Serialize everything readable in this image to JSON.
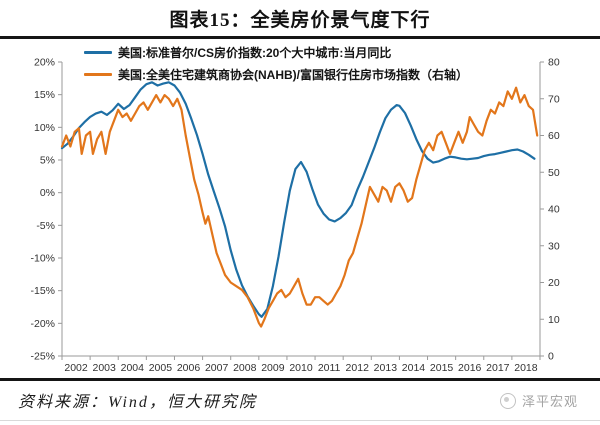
{
  "header": {
    "title": "图表15：全美房价景气度下行"
  },
  "footer": {
    "source": "资料来源：Wind，恒大研究院",
    "watermark": "泽平宏观"
  },
  "chart_data": {
    "type": "line",
    "title": "图表15：全美房价景气度下行",
    "grid": false,
    "legend_position": "top-left",
    "x_axis": {
      "range": [
        2002,
        2019
      ],
      "tick_labels": [
        "2002",
        "2003",
        "2004",
        "2005",
        "2006",
        "2007",
        "2008",
        "2009",
        "2010",
        "2011",
        "2012",
        "2013",
        "2014",
        "2015",
        "2016",
        "2017",
        "2018"
      ]
    },
    "left_axis": {
      "range": [
        -25,
        20
      ],
      "tick_values": [
        20,
        15,
        10,
        5,
        0,
        -5,
        -10,
        -15,
        -20,
        -25
      ],
      "tick_labels": [
        "20%",
        "15%",
        "10%",
        "5%",
        "0%",
        "-5%",
        "-10%",
        "-15%",
        "-20%",
        "-25%"
      ]
    },
    "right_axis": {
      "range": [
        0,
        80
      ],
      "tick_values": [
        80,
        70,
        60,
        50,
        40,
        30,
        20,
        10,
        0
      ],
      "tick_labels": [
        "80",
        "70",
        "60",
        "50",
        "40",
        "30",
        "20",
        "10",
        "0"
      ]
    },
    "series": [
      {
        "name": "美国:标准普尔/CS房价指数:20个大中城市:当月同比",
        "axis": "left",
        "color": "#1E6FA5",
        "points": [
          [
            2002.0,
            6.8
          ],
          [
            2002.2,
            7.5
          ],
          [
            2002.4,
            8.6
          ],
          [
            2002.6,
            9.9
          ],
          [
            2002.8,
            10.8
          ],
          [
            2003.0,
            11.6
          ],
          [
            2003.2,
            12.1
          ],
          [
            2003.4,
            12.4
          ],
          [
            2003.6,
            11.9
          ],
          [
            2003.8,
            12.6
          ],
          [
            2004.0,
            13.6
          ],
          [
            2004.2,
            12.8
          ],
          [
            2004.4,
            13.4
          ],
          [
            2004.6,
            14.6
          ],
          [
            2004.8,
            15.8
          ],
          [
            2005.0,
            16.6
          ],
          [
            2005.2,
            16.9
          ],
          [
            2005.4,
            16.4
          ],
          [
            2005.6,
            16.7
          ],
          [
            2005.8,
            16.9
          ],
          [
            2006.0,
            16.4
          ],
          [
            2006.2,
            15.3
          ],
          [
            2006.4,
            13.6
          ],
          [
            2006.6,
            11.3
          ],
          [
            2006.8,
            8.8
          ],
          [
            2007.0,
            5.9
          ],
          [
            2007.2,
            2.8
          ],
          [
            2007.4,
            0.2
          ],
          [
            2007.6,
            -2.4
          ],
          [
            2007.8,
            -5.2
          ],
          [
            2008.0,
            -8.8
          ],
          [
            2008.2,
            -11.8
          ],
          [
            2008.4,
            -14.2
          ],
          [
            2008.6,
            -15.9
          ],
          [
            2008.8,
            -17.3
          ],
          [
            2009.0,
            -18.6
          ],
          [
            2009.1,
            -19.0
          ],
          [
            2009.3,
            -17.8
          ],
          [
            2009.5,
            -14.3
          ],
          [
            2009.7,
            -9.8
          ],
          [
            2009.9,
            -4.6
          ],
          [
            2010.1,
            0.3
          ],
          [
            2010.3,
            3.6
          ],
          [
            2010.5,
            4.7
          ],
          [
            2010.7,
            3.2
          ],
          [
            2010.9,
            0.6
          ],
          [
            2011.1,
            -1.8
          ],
          [
            2011.3,
            -3.2
          ],
          [
            2011.5,
            -4.1
          ],
          [
            2011.7,
            -4.4
          ],
          [
            2011.9,
            -3.9
          ],
          [
            2012.1,
            -3.1
          ],
          [
            2012.3,
            -1.9
          ],
          [
            2012.5,
            0.4
          ],
          [
            2012.7,
            2.4
          ],
          [
            2012.9,
            4.6
          ],
          [
            2013.1,
            6.8
          ],
          [
            2013.3,
            9.2
          ],
          [
            2013.5,
            11.4
          ],
          [
            2013.7,
            12.7
          ],
          [
            2013.9,
            13.4
          ],
          [
            2014.0,
            13.3
          ],
          [
            2014.2,
            12.2
          ],
          [
            2014.4,
            10.3
          ],
          [
            2014.6,
            8.2
          ],
          [
            2014.8,
            6.4
          ],
          [
            2015.0,
            5.2
          ],
          [
            2015.2,
            4.6
          ],
          [
            2015.4,
            4.8
          ],
          [
            2015.6,
            5.2
          ],
          [
            2015.8,
            5.5
          ],
          [
            2016.0,
            5.4
          ],
          [
            2016.2,
            5.2
          ],
          [
            2016.4,
            5.1
          ],
          [
            2016.6,
            5.2
          ],
          [
            2016.8,
            5.3
          ],
          [
            2017.0,
            5.6
          ],
          [
            2017.2,
            5.8
          ],
          [
            2017.4,
            5.9
          ],
          [
            2017.6,
            6.1
          ],
          [
            2017.8,
            6.3
          ],
          [
            2018.0,
            6.5
          ],
          [
            2018.2,
            6.6
          ],
          [
            2018.4,
            6.3
          ],
          [
            2018.6,
            5.8
          ],
          [
            2018.8,
            5.2
          ]
        ]
      },
      {
        "name": "美国:全美住宅建筑商协会(NAHB)/富国银行住房市场指数（右轴）",
        "axis": "right",
        "color": "#E2761B",
        "points": [
          [
            2002.0,
            57
          ],
          [
            2002.15,
            60
          ],
          [
            2002.3,
            57
          ],
          [
            2002.45,
            61
          ],
          [
            2002.6,
            62
          ],
          [
            2002.7,
            55
          ],
          [
            2002.85,
            60
          ],
          [
            2003.0,
            61
          ],
          [
            2003.1,
            55
          ],
          [
            2003.25,
            59
          ],
          [
            2003.4,
            61
          ],
          [
            2003.55,
            55
          ],
          [
            2003.7,
            61
          ],
          [
            2003.85,
            64
          ],
          [
            2004.0,
            67
          ],
          [
            2004.15,
            65
          ],
          [
            2004.3,
            66
          ],
          [
            2004.45,
            64
          ],
          [
            2004.6,
            66
          ],
          [
            2004.75,
            68
          ],
          [
            2004.9,
            69
          ],
          [
            2005.05,
            67
          ],
          [
            2005.2,
            69
          ],
          [
            2005.35,
            71
          ],
          [
            2005.5,
            69
          ],
          [
            2005.65,
            71
          ],
          [
            2005.8,
            70
          ],
          [
            2005.95,
            68
          ],
          [
            2006.1,
            70
          ],
          [
            2006.25,
            67
          ],
          [
            2006.4,
            60
          ],
          [
            2006.55,
            54
          ],
          [
            2006.7,
            48
          ],
          [
            2006.85,
            44
          ],
          [
            2007.0,
            39
          ],
          [
            2007.1,
            36
          ],
          [
            2007.2,
            38
          ],
          [
            2007.35,
            33
          ],
          [
            2007.5,
            28
          ],
          [
            2007.65,
            25
          ],
          [
            2007.8,
            22
          ],
          [
            2008.0,
            20
          ],
          [
            2008.2,
            19
          ],
          [
            2008.4,
            18
          ],
          [
            2008.6,
            16
          ],
          [
            2008.8,
            13
          ],
          [
            2009.0,
            9
          ],
          [
            2009.08,
            8
          ],
          [
            2009.2,
            10
          ],
          [
            2009.35,
            13
          ],
          [
            2009.5,
            15
          ],
          [
            2009.65,
            17
          ],
          [
            2009.8,
            18
          ],
          [
            2009.95,
            16
          ],
          [
            2010.1,
            17
          ],
          [
            2010.25,
            19
          ],
          [
            2010.4,
            21
          ],
          [
            2010.55,
            17
          ],
          [
            2010.7,
            14
          ],
          [
            2010.85,
            14
          ],
          [
            2011.0,
            16
          ],
          [
            2011.15,
            16
          ],
          [
            2011.3,
            15
          ],
          [
            2011.45,
            14
          ],
          [
            2011.6,
            15
          ],
          [
            2011.75,
            17
          ],
          [
            2011.9,
            19
          ],
          [
            2012.05,
            22
          ],
          [
            2012.2,
            26
          ],
          [
            2012.35,
            28
          ],
          [
            2012.5,
            32
          ],
          [
            2012.65,
            36
          ],
          [
            2012.8,
            41
          ],
          [
            2012.95,
            46
          ],
          [
            2013.1,
            44
          ],
          [
            2013.25,
            42
          ],
          [
            2013.4,
            46
          ],
          [
            2013.55,
            45
          ],
          [
            2013.7,
            42
          ],
          [
            2013.85,
            46
          ],
          [
            2014.0,
            47
          ],
          [
            2014.15,
            45
          ],
          [
            2014.3,
            42
          ],
          [
            2014.45,
            43
          ],
          [
            2014.6,
            48
          ],
          [
            2014.75,
            52
          ],
          [
            2014.9,
            56
          ],
          [
            2015.05,
            58
          ],
          [
            2015.2,
            56
          ],
          [
            2015.35,
            60
          ],
          [
            2015.5,
            61
          ],
          [
            2015.65,
            58
          ],
          [
            2015.8,
            55
          ],
          [
            2015.95,
            58
          ],
          [
            2016.1,
            61
          ],
          [
            2016.25,
            58
          ],
          [
            2016.4,
            61
          ],
          [
            2016.5,
            65
          ],
          [
            2016.65,
            63
          ],
          [
            2016.8,
            61
          ],
          [
            2016.95,
            60
          ],
          [
            2017.1,
            64
          ],
          [
            2017.25,
            67
          ],
          [
            2017.4,
            66
          ],
          [
            2017.55,
            69
          ],
          [
            2017.7,
            68
          ],
          [
            2017.85,
            72
          ],
          [
            2018.0,
            70
          ],
          [
            2018.15,
            73
          ],
          [
            2018.3,
            69
          ],
          [
            2018.45,
            71
          ],
          [
            2018.6,
            68
          ],
          [
            2018.75,
            67
          ],
          [
            2018.9,
            60
          ]
        ]
      }
    ]
  }
}
